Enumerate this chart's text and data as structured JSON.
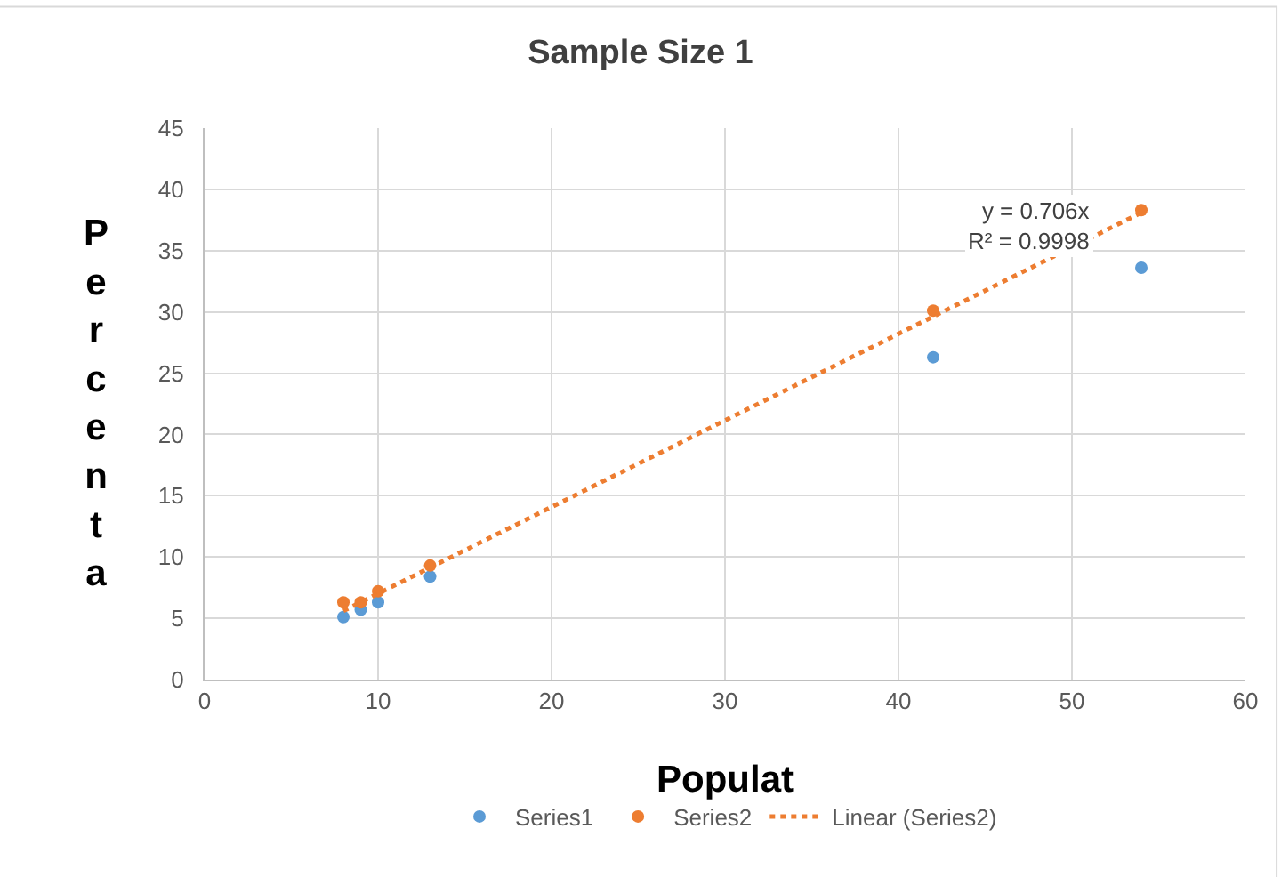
{
  "chart_data": {
    "type": "scatter",
    "title": "Sample Size 1",
    "xlabel": "Populat",
    "ylabel": "Percenta",
    "x": [
      8,
      9,
      10,
      13,
      42,
      54
    ],
    "series": [
      {
        "name": "Series1",
        "color": "#5b9bd5",
        "values": [
          5.1,
          5.7,
          6.3,
          8.4,
          26.3,
          33.6
        ]
      },
      {
        "name": "Series2",
        "color": "#ed7d31",
        "values": [
          6.3,
          6.3,
          7.2,
          9.3,
          30.1,
          38.3
        ]
      },
      {
        "name": "Linear (Series2)",
        "type": "line",
        "line_style": "dotted",
        "marker": "none",
        "color": "#ed7d31",
        "x": [
          8,
          54
        ],
        "values": [
          5.6,
          38.1
        ]
      }
    ],
    "annotations": [
      "y = 0.706x\nR² = 0.9998"
    ],
    "xlim": [
      0,
      60
    ],
    "xticks": [
      0,
      10,
      20,
      30,
      40,
      50,
      60
    ],
    "ylim": [
      0,
      45
    ],
    "yticks": [
      0,
      5,
      10,
      15,
      20,
      25,
      30,
      35,
      40,
      45
    ],
    "grid": true,
    "legend": "bottom",
    "marker": "circle"
  }
}
